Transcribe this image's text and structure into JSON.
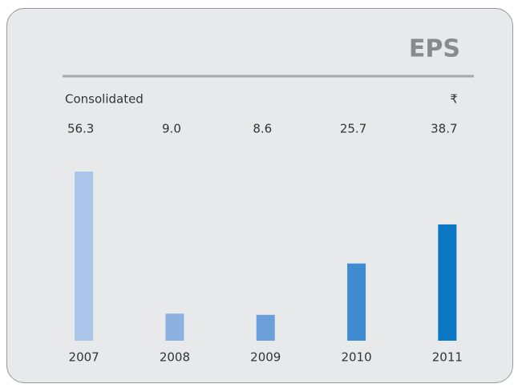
{
  "chart_data": {
    "type": "bar",
    "title": "EPS",
    "subtitle": "Consolidated",
    "unit": "₹",
    "categories": [
      "2007",
      "2008",
      "2009",
      "2010",
      "2011"
    ],
    "values": [
      56.3,
      9.0,
      8.6,
      25.7,
      38.7
    ],
    "value_labels": [
      "56.3",
      "9.0",
      "8.6",
      "25.7",
      "38.7"
    ],
    "colors": [
      "#aac5e9",
      "#8cb1e0",
      "#6a9fd9",
      "#3e8bd2",
      "#0b78c5"
    ]
  }
}
